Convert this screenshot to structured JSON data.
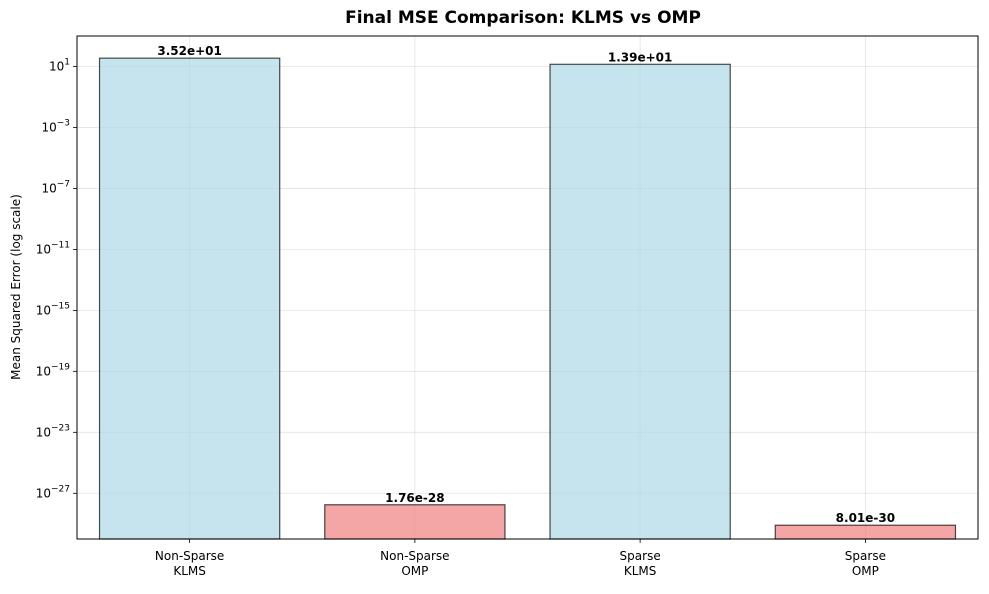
{
  "chart_data": {
    "type": "bar",
    "title": "Final MSE Comparison: KLMS vs OMP",
    "xlabel": "",
    "ylabel": "Mean Squared Error (log scale)",
    "yscale": "log",
    "ylim": [
      1e-30,
      1000.0
    ],
    "grid": true,
    "categories": [
      [
        "Non-Sparse",
        "KLMS"
      ],
      [
        "Non-Sparse",
        "OMP"
      ],
      [
        "Sparse",
        "KLMS"
      ],
      [
        "Sparse",
        "OMP"
      ]
    ],
    "values": [
      35.2,
      1.76e-28,
      13.9,
      8.01e-30
    ],
    "value_labels": [
      "3.52e+01",
      "1.76e-28",
      "1.39e+01",
      "8.01e-30"
    ],
    "colors": [
      "#add8e6",
      "#f08080",
      "#add8e6",
      "#f08080"
    ],
    "ytick_exponents": [
      1,
      -3,
      -7,
      -11,
      -15,
      -19,
      -23,
      -27
    ]
  }
}
